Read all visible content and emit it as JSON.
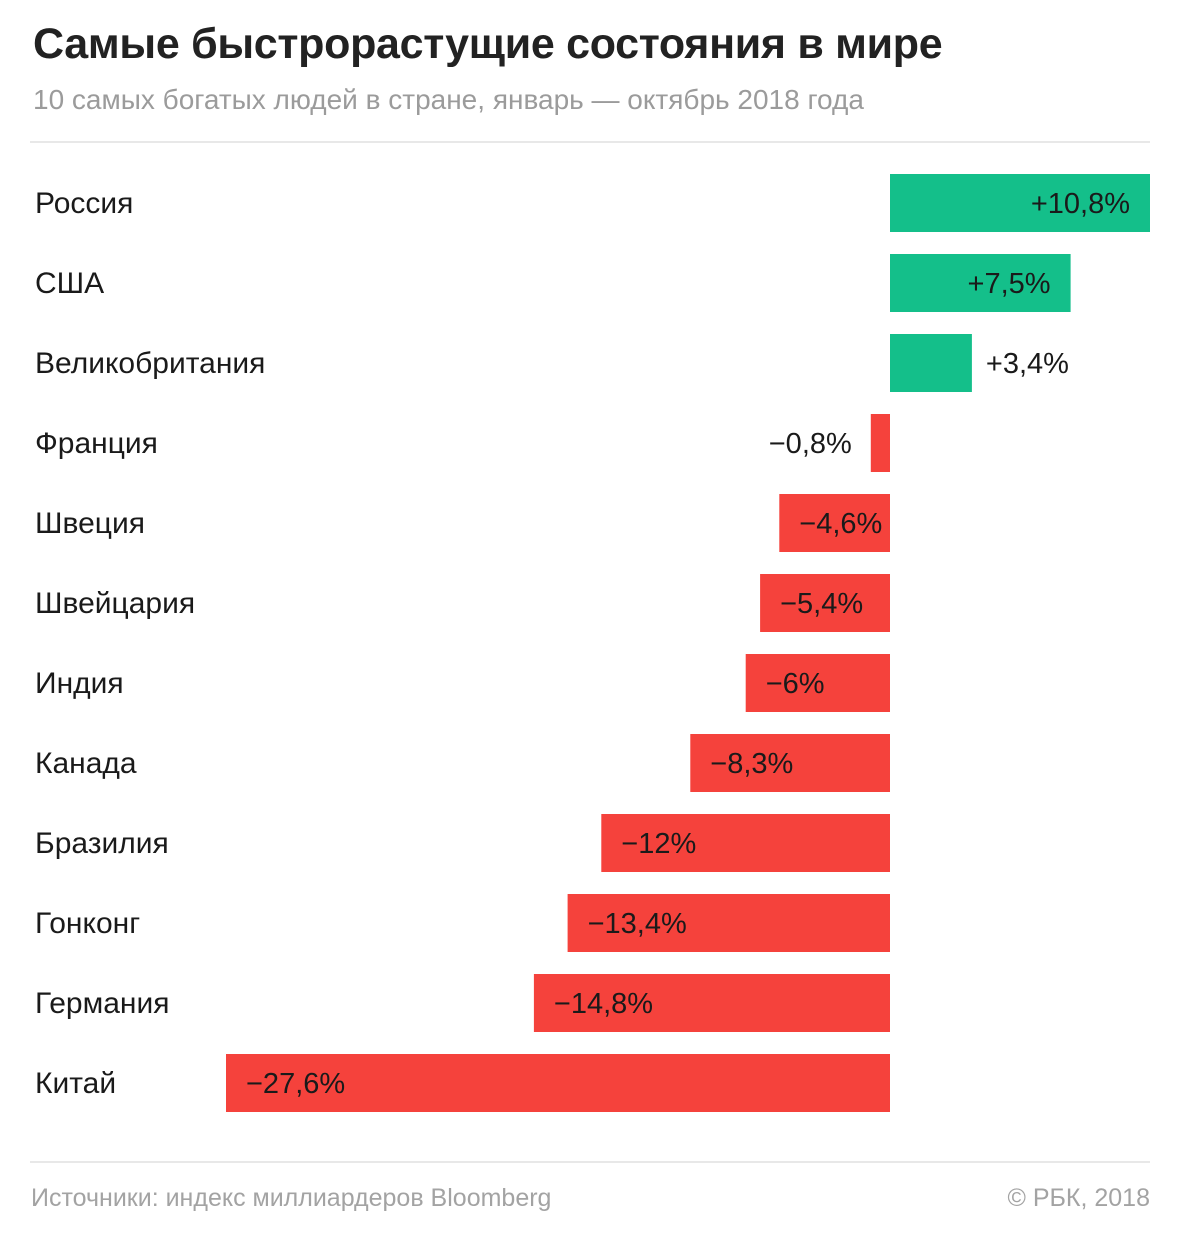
{
  "header": {
    "title": "Самые быстрорастущие состояния в мире",
    "subtitle": "10 самых богатых людей в стране, январь — октябрь 2018 года"
  },
  "footer": {
    "source": "Источники: индекс миллиардеров Bloomberg",
    "credit": "© РБК, 2018"
  },
  "colors": {
    "positive": "#14bf8a",
    "negative": "#f5423c",
    "text": "#1a1a1a"
  },
  "chart_data": {
    "type": "bar",
    "orientation": "horizontal",
    "categories": [
      "Россия",
      "США",
      "Великобритания",
      "Франция",
      "Швеция",
      "Швейцария",
      "Индия",
      "Канада",
      "Бразилия",
      "Гонконг",
      "Германия",
      "Китай"
    ],
    "values": [
      10.8,
      7.5,
      3.4,
      -0.8,
      -4.6,
      -5.4,
      -6,
      -8.3,
      -12,
      -13.4,
      -14.8,
      -27.6
    ],
    "labels": [
      "+10,8%",
      "+7,5%",
      "+3,4%",
      "−0,8%",
      "−4,6%",
      "−5,4%",
      "−6%",
      "−8,3%",
      "−12%",
      "−13,4%",
      "−14,8%",
      "−27,6%"
    ],
    "title": "Самые быстрорастущие состояния в мире",
    "subtitle": "10 самых богатых людей в стране, январь — октябрь 2018 года",
    "xlim": [
      -27.6,
      10.8
    ],
    "grid": false,
    "legend": "none"
  }
}
